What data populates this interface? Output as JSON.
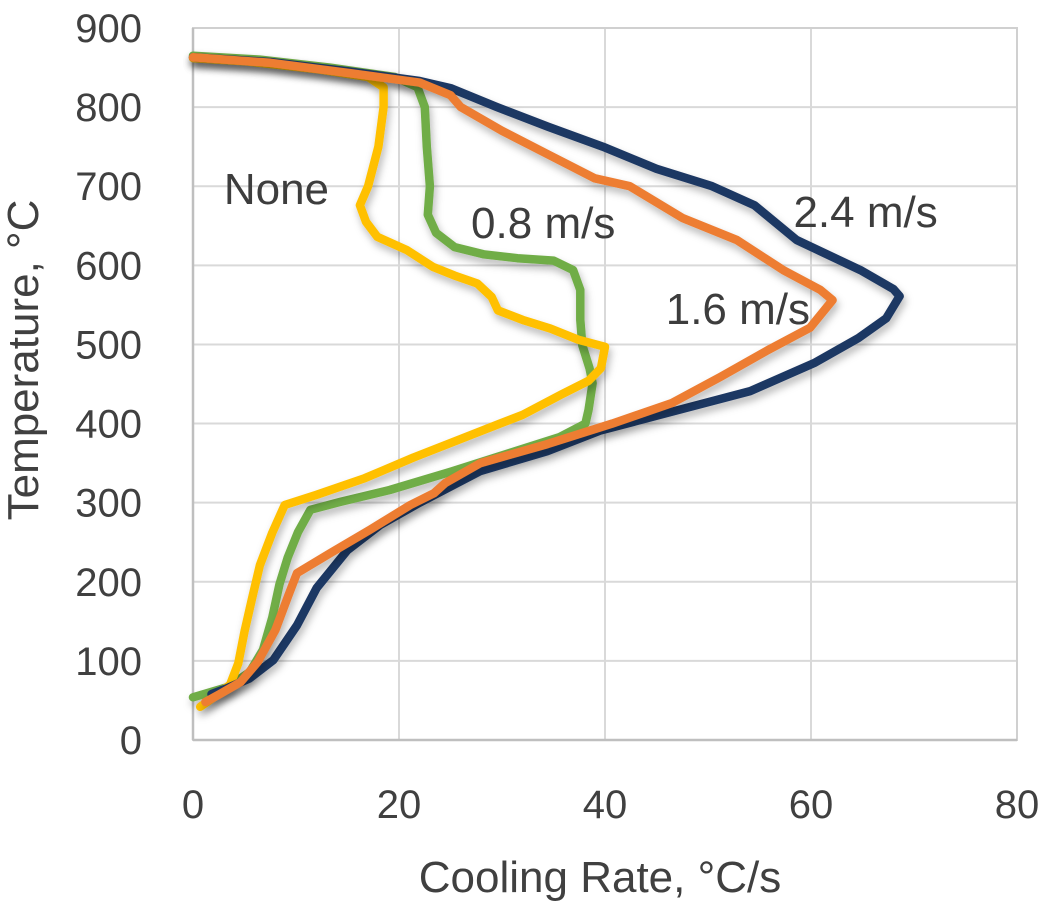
{
  "chart_data": {
    "type": "line",
    "title": "",
    "xlabel": "Cooling Rate, °C/s",
    "ylabel": "Temperature, °C",
    "xlim": [
      0,
      80
    ],
    "ylim": [
      0,
      900
    ],
    "x_ticks": [
      0,
      20,
      40,
      60,
      80
    ],
    "y_ticks": [
      0,
      100,
      200,
      300,
      400,
      500,
      600,
      700,
      800,
      900
    ],
    "grid": true,
    "legend_position": "inline-annotations",
    "series": [
      {
        "name": "0.8 m/s",
        "color": "#70AD47",
        "annotation": {
          "x": 34.0,
          "y": 654
        },
        "points": [
          [
            0,
            865
          ],
          [
            6.5,
            860
          ],
          [
            13.3,
            850
          ],
          [
            19.6,
            838
          ],
          [
            21.8,
            825
          ],
          [
            22.5,
            800
          ],
          [
            22.7,
            750
          ],
          [
            23,
            700
          ],
          [
            22.8,
            664
          ],
          [
            23.6,
            641
          ],
          [
            25.4,
            623
          ],
          [
            28.2,
            614
          ],
          [
            31.5,
            609
          ],
          [
            35,
            606
          ],
          [
            36.9,
            594
          ],
          [
            37.6,
            569
          ],
          [
            37.6,
            531
          ],
          [
            37.8,
            499
          ],
          [
            38.5,
            470
          ],
          [
            38.8,
            451
          ],
          [
            38.4,
            417
          ],
          [
            38.1,
            400
          ],
          [
            35.6,
            383
          ],
          [
            30.8,
            363
          ],
          [
            25,
            339
          ],
          [
            19.1,
            316
          ],
          [
            14.3,
            301
          ],
          [
            11.4,
            291
          ],
          [
            10.2,
            263
          ],
          [
            9.2,
            231
          ],
          [
            8.4,
            197
          ],
          [
            7.7,
            155
          ],
          [
            6.8,
            114
          ],
          [
            5.5,
            86
          ],
          [
            3.4,
            67
          ],
          [
            0,
            54
          ]
        ]
      },
      {
        "name": "None",
        "color": "#FFC000",
        "annotation": {
          "x": 8.1,
          "y": 697
        },
        "points": [
          [
            0,
            862
          ],
          [
            5,
            858
          ],
          [
            12,
            848
          ],
          [
            17,
            838
          ],
          [
            18.5,
            825
          ],
          [
            18.5,
            800
          ],
          [
            18,
            750
          ],
          [
            17,
            700
          ],
          [
            16.2,
            676
          ],
          [
            16.8,
            655
          ],
          [
            17.9,
            636
          ],
          [
            20.8,
            619
          ],
          [
            23.3,
            598
          ],
          [
            25.4,
            587
          ],
          [
            27.6,
            577
          ],
          [
            29,
            560
          ],
          [
            29.6,
            543
          ],
          [
            32,
            531
          ],
          [
            34.7,
            520
          ],
          [
            37.4,
            506
          ],
          [
            40,
            497
          ],
          [
            39.6,
            470
          ],
          [
            38.4,
            454
          ],
          [
            35.8,
            437
          ],
          [
            32,
            411
          ],
          [
            29.8,
            400
          ],
          [
            25.7,
            379
          ],
          [
            21.4,
            357
          ],
          [
            16.7,
            331
          ],
          [
            12,
            310
          ],
          [
            8.9,
            297
          ],
          [
            7.7,
            262
          ],
          [
            6.5,
            221
          ],
          [
            5.7,
            177
          ],
          [
            5,
            137
          ],
          [
            4.4,
            97
          ],
          [
            3.6,
            70
          ],
          [
            1.9,
            53
          ],
          [
            0.7,
            42
          ]
        ]
      },
      {
        "name": "2.4 m/s",
        "color": "#1F3864",
        "annotation": {
          "x": 65.3,
          "y": 668
        },
        "points": [
          [
            0,
            863
          ],
          [
            7.5,
            857
          ],
          [
            15.2,
            845
          ],
          [
            22,
            833
          ],
          [
            25,
            824
          ],
          [
            29.5,
            800
          ],
          [
            34.5,
            775
          ],
          [
            39.8,
            750
          ],
          [
            45,
            722
          ],
          [
            50.4,
            700
          ],
          [
            54.5,
            676
          ],
          [
            58.6,
            632
          ],
          [
            64.8,
            594
          ],
          [
            68,
            570
          ],
          [
            68.6,
            561
          ],
          [
            67.3,
            533
          ],
          [
            64.6,
            508
          ],
          [
            60.4,
            477
          ],
          [
            54.1,
            441
          ],
          [
            46.5,
            415
          ],
          [
            39.5,
            391
          ],
          [
            34.4,
            365
          ],
          [
            27.9,
            340
          ],
          [
            22,
            300
          ],
          [
            18.2,
            272
          ],
          [
            15,
            240
          ],
          [
            12,
            192
          ],
          [
            10.1,
            145
          ],
          [
            7.8,
            101
          ],
          [
            5.5,
            78
          ],
          [
            3.4,
            66
          ],
          [
            1.8,
            58
          ]
        ]
      },
      {
        "name": "1.6 m/s",
        "color": "#ED7D31",
        "annotation": {
          "x": 52.9,
          "y": 545
        },
        "points": [
          [
            0,
            863
          ],
          [
            7.5,
            856
          ],
          [
            15.2,
            843
          ],
          [
            22,
            831
          ],
          [
            25,
            815
          ],
          [
            26,
            800
          ],
          [
            30,
            770
          ],
          [
            34.5,
            740
          ],
          [
            39,
            710
          ],
          [
            42.4,
            700
          ],
          [
            47.5,
            660
          ],
          [
            52.8,
            632
          ],
          [
            57.3,
            594
          ],
          [
            60.9,
            569
          ],
          [
            62.1,
            556
          ],
          [
            59.9,
            521
          ],
          [
            55.7,
            492
          ],
          [
            51.2,
            459
          ],
          [
            46.5,
            426
          ],
          [
            40.7,
            400
          ],
          [
            34.4,
            374
          ],
          [
            27.9,
            350
          ],
          [
            24.5,
            325
          ],
          [
            23.4,
            312
          ],
          [
            21.1,
            297
          ],
          [
            17.2,
            266
          ],
          [
            13.3,
            236
          ],
          [
            10.1,
            211
          ],
          [
            9.3,
            184
          ],
          [
            8,
            139
          ],
          [
            6.3,
            99
          ],
          [
            4.6,
            73
          ],
          [
            2.6,
            58
          ],
          [
            1.2,
            48
          ]
        ]
      }
    ]
  },
  "styles": {
    "gridline_color": "#D9D9D9",
    "plot_border_color": "#D0D0D0",
    "axis_line_color": "#BFBFBF",
    "text_color": "#404040",
    "line_width": 8.5
  }
}
